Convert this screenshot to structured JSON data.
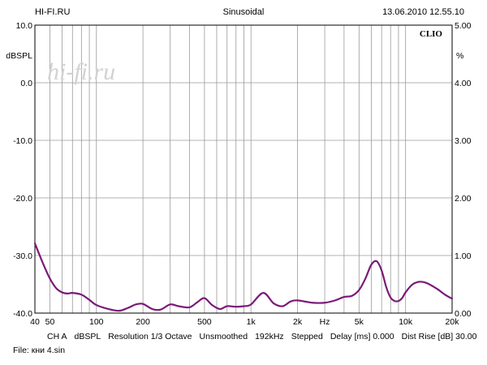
{
  "header": {
    "left": "HI-FI.RU",
    "center": "Sinusoidal",
    "right": "13.06.2010 12.55.10"
  },
  "plot": {
    "brand": "CLIO",
    "watermark": "hi-fi.ru",
    "left_unit": "dBSPL",
    "right_unit": "%"
  },
  "footer": {
    "params": [
      "CH A",
      "dBSPL",
      "Resolution 1/3 Octave",
      "Unsmoothed",
      "192kHz",
      "Stepped",
      "Delay [ms] 0.000",
      "Dist Rise [dB] 30.00"
    ],
    "file": "File: кни 4.sin"
  },
  "chart_data": {
    "type": "line",
    "x_scale": "log",
    "xlim": [
      40,
      20000
    ],
    "ylim": [
      -40,
      10
    ],
    "ylim_right": [
      0,
      5
    ],
    "grid": true,
    "x_ticks": [
      {
        "value": 40,
        "label": "40"
      },
      {
        "value": 50,
        "label": "50"
      },
      {
        "value": 100,
        "label": "100"
      },
      {
        "value": 200,
        "label": "200"
      },
      {
        "value": 500,
        "label": "500"
      },
      {
        "value": 1000,
        "label": "1k"
      },
      {
        "value": 2000,
        "label": "2k"
      },
      {
        "value": 3000,
        "label": "Hz"
      },
      {
        "value": 5000,
        "label": "5k"
      },
      {
        "value": 10000,
        "label": "10k"
      },
      {
        "value": 20000,
        "label": "20k"
      }
    ],
    "y_ticks_left": [
      "10.0",
      "0.0",
      "-10.0",
      "-20.0",
      "-30.0",
      "-40.0"
    ],
    "y_ticks_right": [
      "5.00",
      "4.00",
      "3.00",
      "2.00",
      "1.00",
      "0.00"
    ],
    "series": [
      {
        "color": "#7a1a78",
        "x": [
          40,
          45,
          50,
          55,
          60,
          65,
          70,
          80,
          90,
          100,
          120,
          140,
          160,
          180,
          200,
          230,
          260,
          300,
          340,
          400,
          450,
          500,
          560,
          630,
          700,
          800,
          900,
          1000,
          1200,
          1400,
          1600,
          1800,
          2000,
          2500,
          3000,
          3500,
          4000,
          4500,
          5000,
          5500,
          6000,
          6500,
          7000,
          7500,
          8000,
          8500,
          9000,
          9500,
          10000,
          11000,
          12000,
          13000,
          14000,
          16000,
          18000,
          20000
        ],
        "y": [
          -27.9,
          -31.3,
          -34.0,
          -35.7,
          -36.4,
          -36.6,
          -36.5,
          -36.8,
          -37.7,
          -38.6,
          -39.3,
          -39.6,
          -39.1,
          -38.5,
          -38.4,
          -39.3,
          -39.4,
          -38.5,
          -38.8,
          -39.0,
          -38.1,
          -37.4,
          -38.6,
          -39.3,
          -38.8,
          -38.9,
          -38.8,
          -38.5,
          -36.5,
          -38.3,
          -38.8,
          -38.0,
          -37.8,
          -38.2,
          -38.2,
          -37.8,
          -37.2,
          -37.0,
          -36.0,
          -34.0,
          -31.6,
          -31.0,
          -32.6,
          -35.5,
          -37.3,
          -37.9,
          -37.9,
          -37.4,
          -36.4,
          -35.1,
          -34.6,
          -34.6,
          -34.9,
          -35.8,
          -36.8,
          -37.5
        ]
      }
    ]
  }
}
